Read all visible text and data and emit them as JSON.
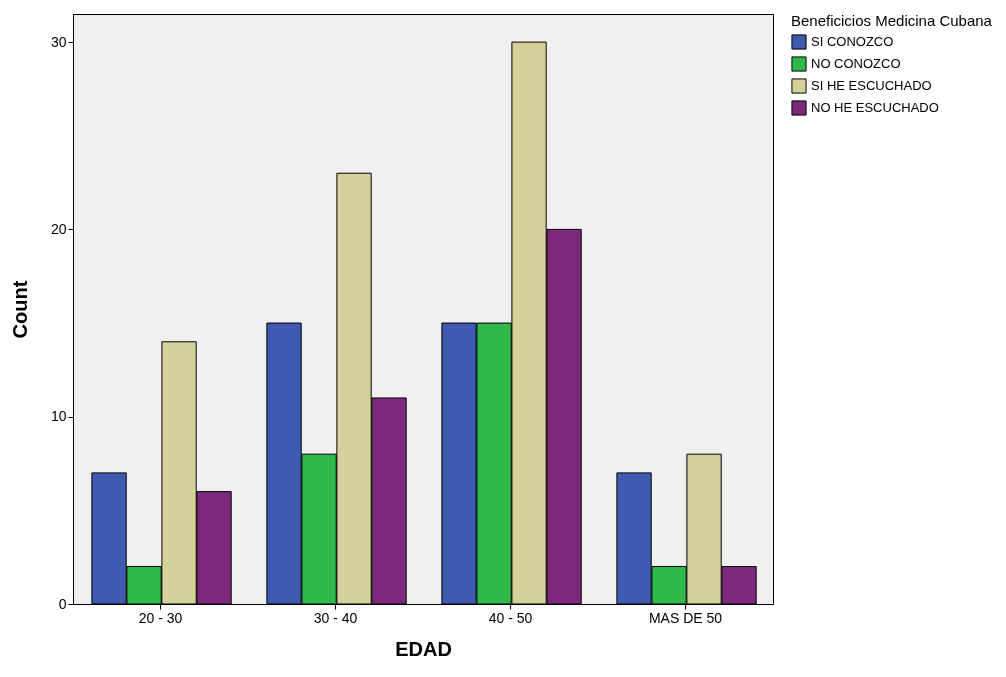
{
  "chart_data": {
    "type": "bar",
    "xlabel": "EDAD",
    "ylabel": "Count",
    "legend_title": "Beneficicios Medicina Cubana",
    "categories": [
      "20 - 30",
      "30 - 40",
      "40 - 50",
      "MAS DE 50"
    ],
    "series": [
      {
        "name": "SI CONOZCO",
        "color": "#3f5aaf",
        "values": [
          7,
          15,
          15,
          7
        ]
      },
      {
        "name": "NO CONOZCO",
        "color": "#2eb94a",
        "values": [
          2,
          8,
          15,
          2
        ]
      },
      {
        "name": "SI HE ESCUCHADO",
        "color": "#d5d19a",
        "values": [
          14,
          23,
          30,
          8
        ]
      },
      {
        "name": "NO HE ESCUCHADO",
        "color": "#7d2a7c",
        "values": [
          6,
          11,
          20,
          2
        ]
      }
    ],
    "ylim": [
      0,
      31.5
    ],
    "yticks": [
      0,
      10,
      20,
      30
    ],
    "grid": false,
    "legend": "top right"
  }
}
